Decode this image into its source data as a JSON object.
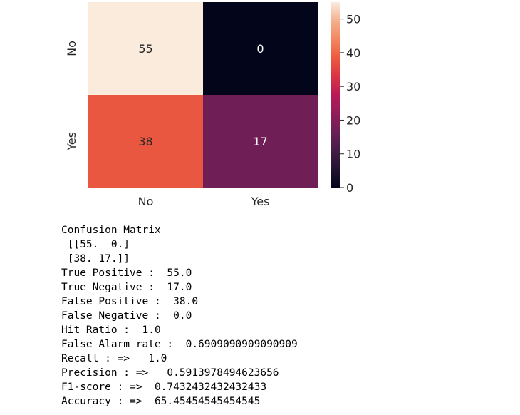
{
  "chart_data": {
    "type": "heatmap",
    "rows": [
      "No",
      "Yes"
    ],
    "cols": [
      "No",
      "Yes"
    ],
    "values": [
      [
        55,
        0
      ],
      [
        38,
        17
      ]
    ],
    "vmin": 0,
    "vmax": 55,
    "colorbar_ticks": [
      0,
      10,
      20,
      30,
      40,
      50
    ],
    "colormap": "rocket"
  },
  "output_lines": [
    "Confusion Matrix",
    " [[55.  0.]",
    " [38. 17.]]",
    "True Positive :  55.0",
    "True Negative :  17.0",
    "False Positive :  38.0",
    "False Negative :  0.0",
    "Hit Ratio :  1.0",
    "False Alarm rate :  0.6909090909090909",
    "Recall : =>   1.0",
    "Precision : =>   0.5913978494623656",
    "F1-score : =>  0.7432432432432433",
    "Accuracy : =>  65.45454545454545"
  ]
}
